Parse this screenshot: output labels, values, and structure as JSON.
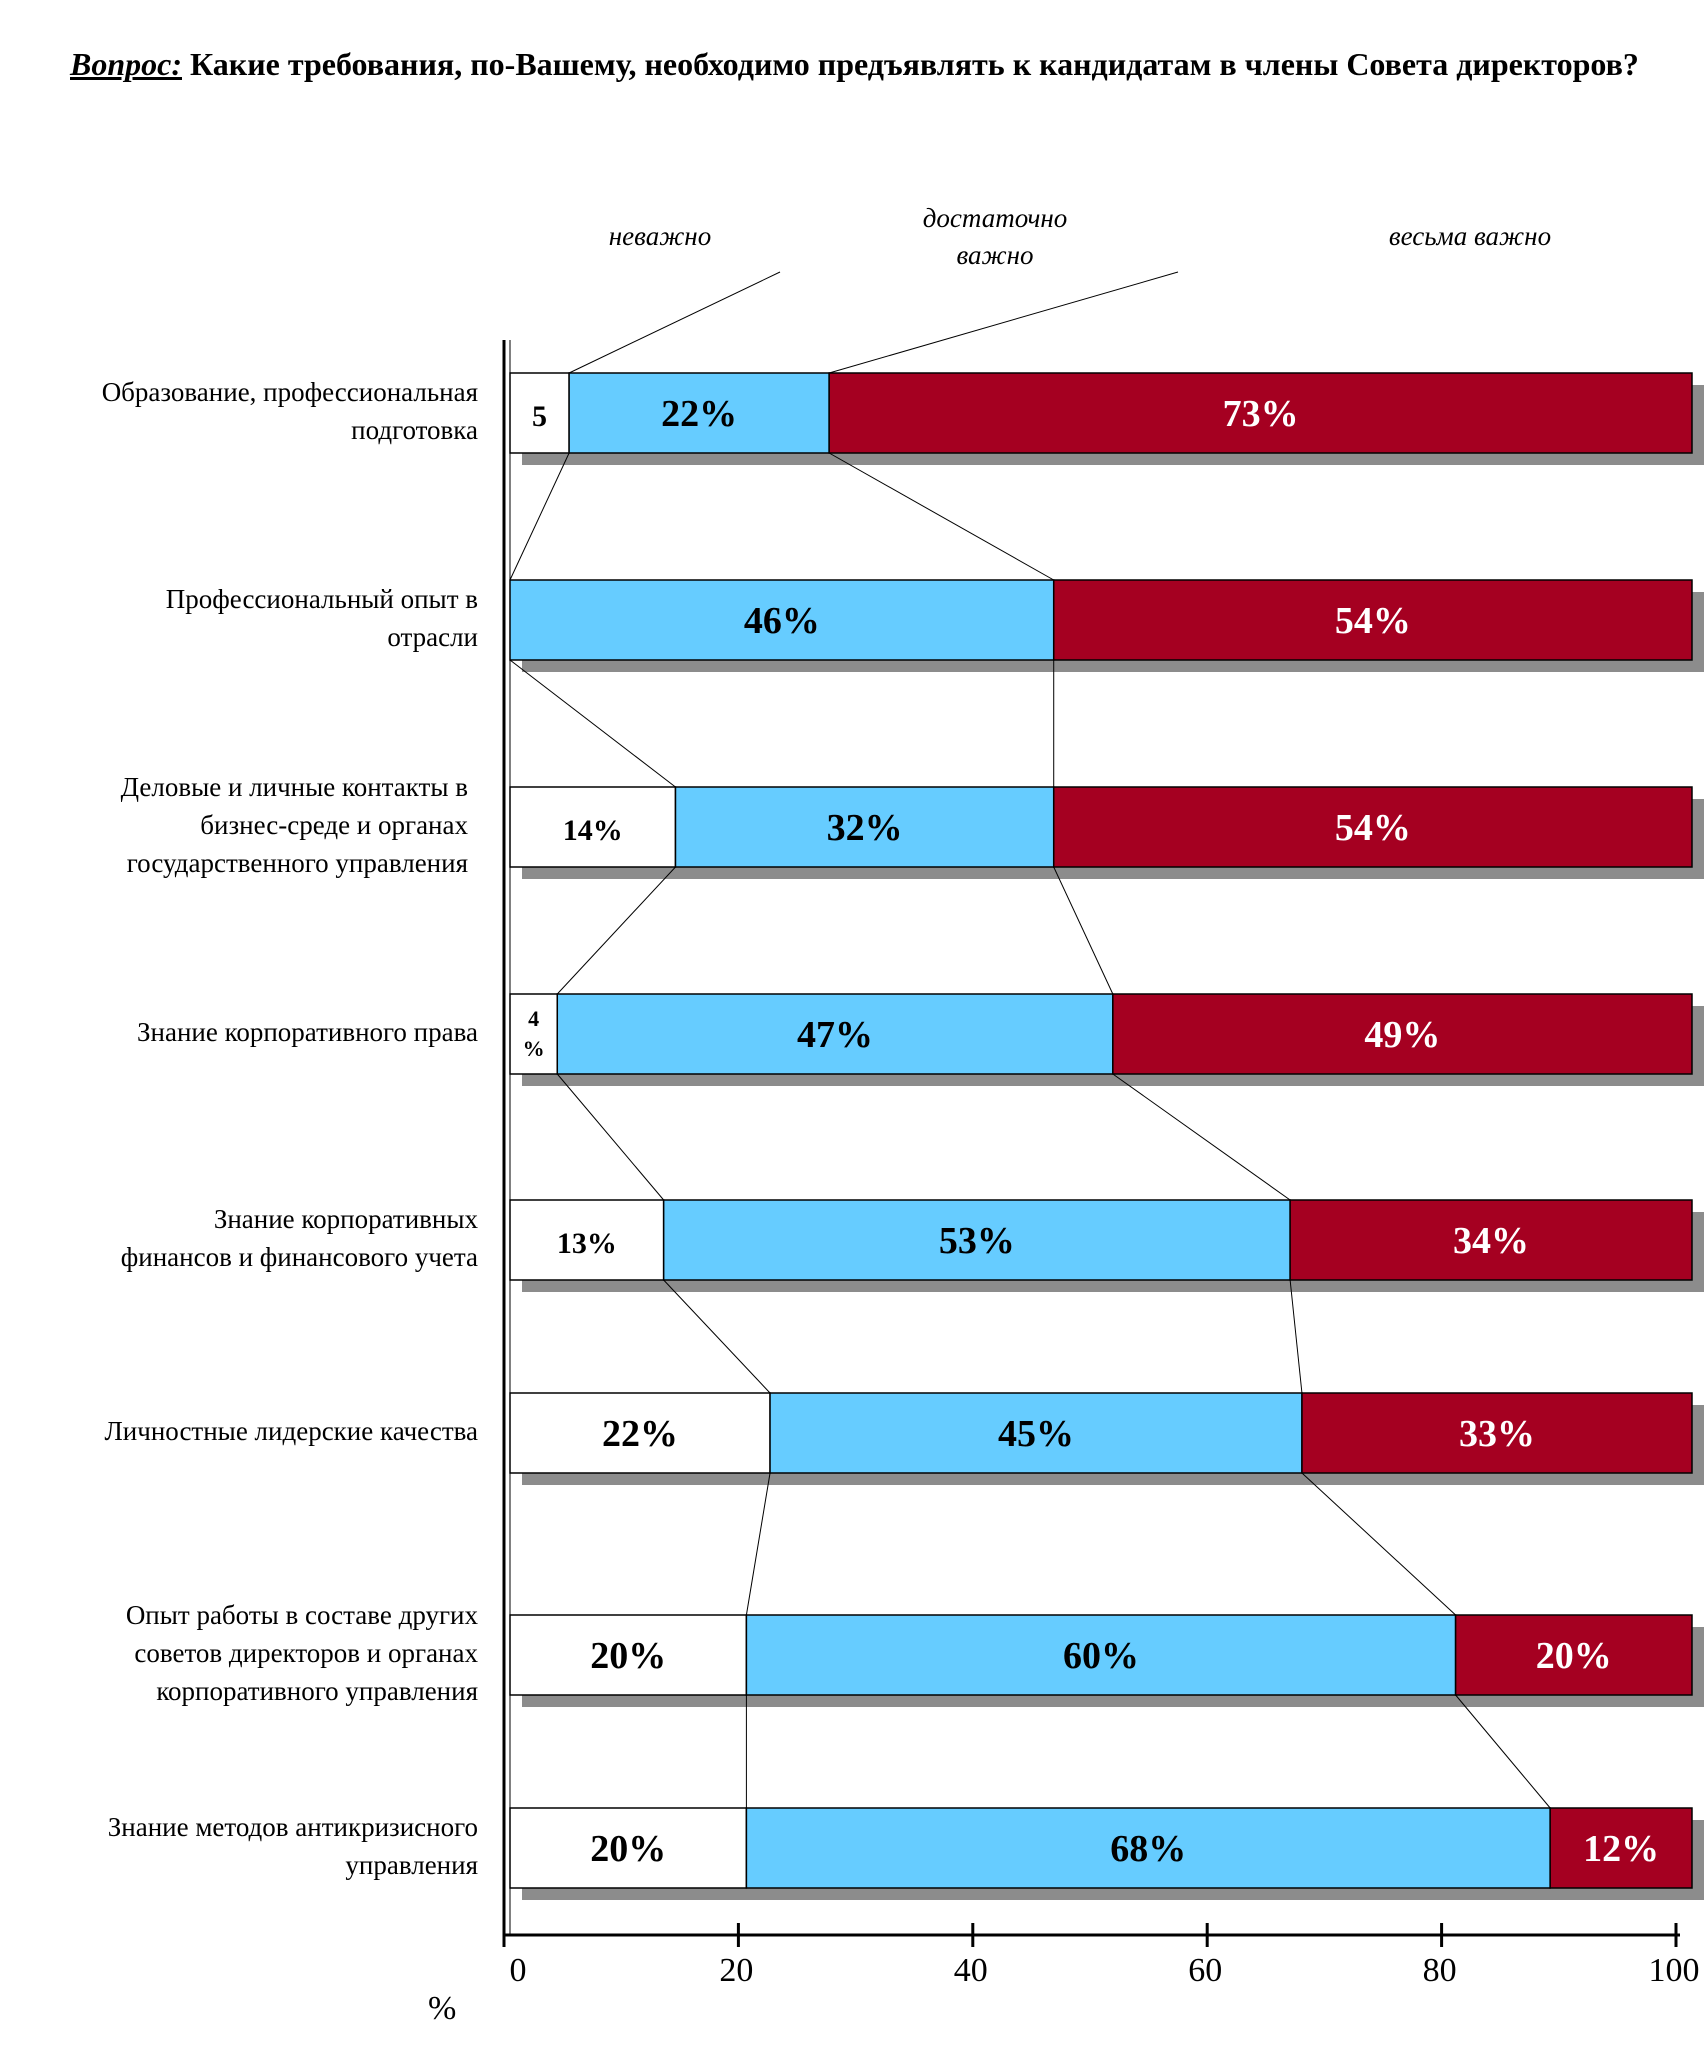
{
  "question": {
    "label": "Вопрос:",
    "text": "Какие требования, по-Вашему, необходимо предъявлять к кандидатам в члены Совета директоров?"
  },
  "legend": {
    "unimportant": "неважно",
    "fairly_important": "достаточно важно",
    "very_important": "весьма важно"
  },
  "axis_unit": "%",
  "colors": {
    "unimportant": "#ffffff",
    "fairly_important": "#66ccff",
    "very_important": "#a50021",
    "shadow": "#8c8c8c"
  },
  "chart_data": {
    "type": "bar",
    "orientation": "horizontal",
    "stacked": true,
    "xlim": [
      0,
      100
    ],
    "xticks": [
      0,
      20,
      40,
      60,
      80,
      100
    ],
    "xlabel": "%",
    "categories": [
      "Образование, профессиональная подготовка",
      "Профессиональный опыт в отрасли",
      "Деловые и личные контакты в бизнес-среде и органах государственного управления",
      "Знание корпоративного права",
      "Знание корпоративных финансов и финансового учета",
      "Личностные лидерские качества",
      "Опыт работы в составе других советов директоров и органах корпоративного управления",
      "Знание методов антикризисного управления"
    ],
    "series": [
      {
        "name": "неважно",
        "values": [
          5,
          0,
          14,
          4,
          13,
          22,
          20,
          20
        ],
        "labels": [
          "5",
          "",
          "14%",
          "4 %",
          "13%",
          "22%",
          "20%",
          "20%"
        ]
      },
      {
        "name": "достаточно важно",
        "values": [
          22,
          46,
          32,
          47,
          53,
          45,
          60,
          68
        ],
        "labels": [
          "22%",
          "46%",
          "32%",
          "47%",
          "53%",
          "45%",
          "60%",
          "68%"
        ]
      },
      {
        "name": "весьма важно",
        "values": [
          73,
          54,
          54,
          49,
          34,
          33,
          20,
          12
        ],
        "labels": [
          "73%",
          "54%",
          "54%",
          "49%",
          "34%",
          "33%",
          "20%",
          "12%"
        ]
      }
    ]
  }
}
